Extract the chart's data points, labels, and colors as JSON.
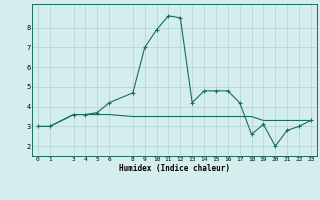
{
  "xlabel": "Humidex (Indice chaleur)",
  "x_values": [
    0,
    1,
    3,
    4,
    5,
    6,
    8,
    9,
    10,
    11,
    12,
    13,
    14,
    15,
    16,
    17,
    18,
    19,
    20,
    21,
    22,
    23
  ],
  "y_values": [
    3.0,
    3.0,
    3.6,
    3.6,
    3.7,
    4.2,
    4.7,
    7.0,
    7.9,
    8.6,
    8.5,
    4.2,
    4.8,
    4.8,
    4.8,
    4.2,
    2.6,
    3.1,
    2.0,
    2.8,
    3.0,
    3.3
  ],
  "y2_values": [
    3.0,
    3.0,
    3.6,
    3.6,
    3.6,
    3.6,
    3.5,
    3.5,
    3.5,
    3.5,
    3.5,
    3.5,
    3.5,
    3.5,
    3.5,
    3.5,
    3.5,
    3.3,
    3.3,
    3.3,
    3.3,
    3.3
  ],
  "line_color": "#1a6b5e",
  "bg_color": "#d4eeed",
  "grid_color": "#b8d8d4",
  "ylim": [
    1.5,
    9.2
  ],
  "yticks": [
    2,
    3,
    4,
    5,
    6,
    7,
    8
  ],
  "marker": "+"
}
